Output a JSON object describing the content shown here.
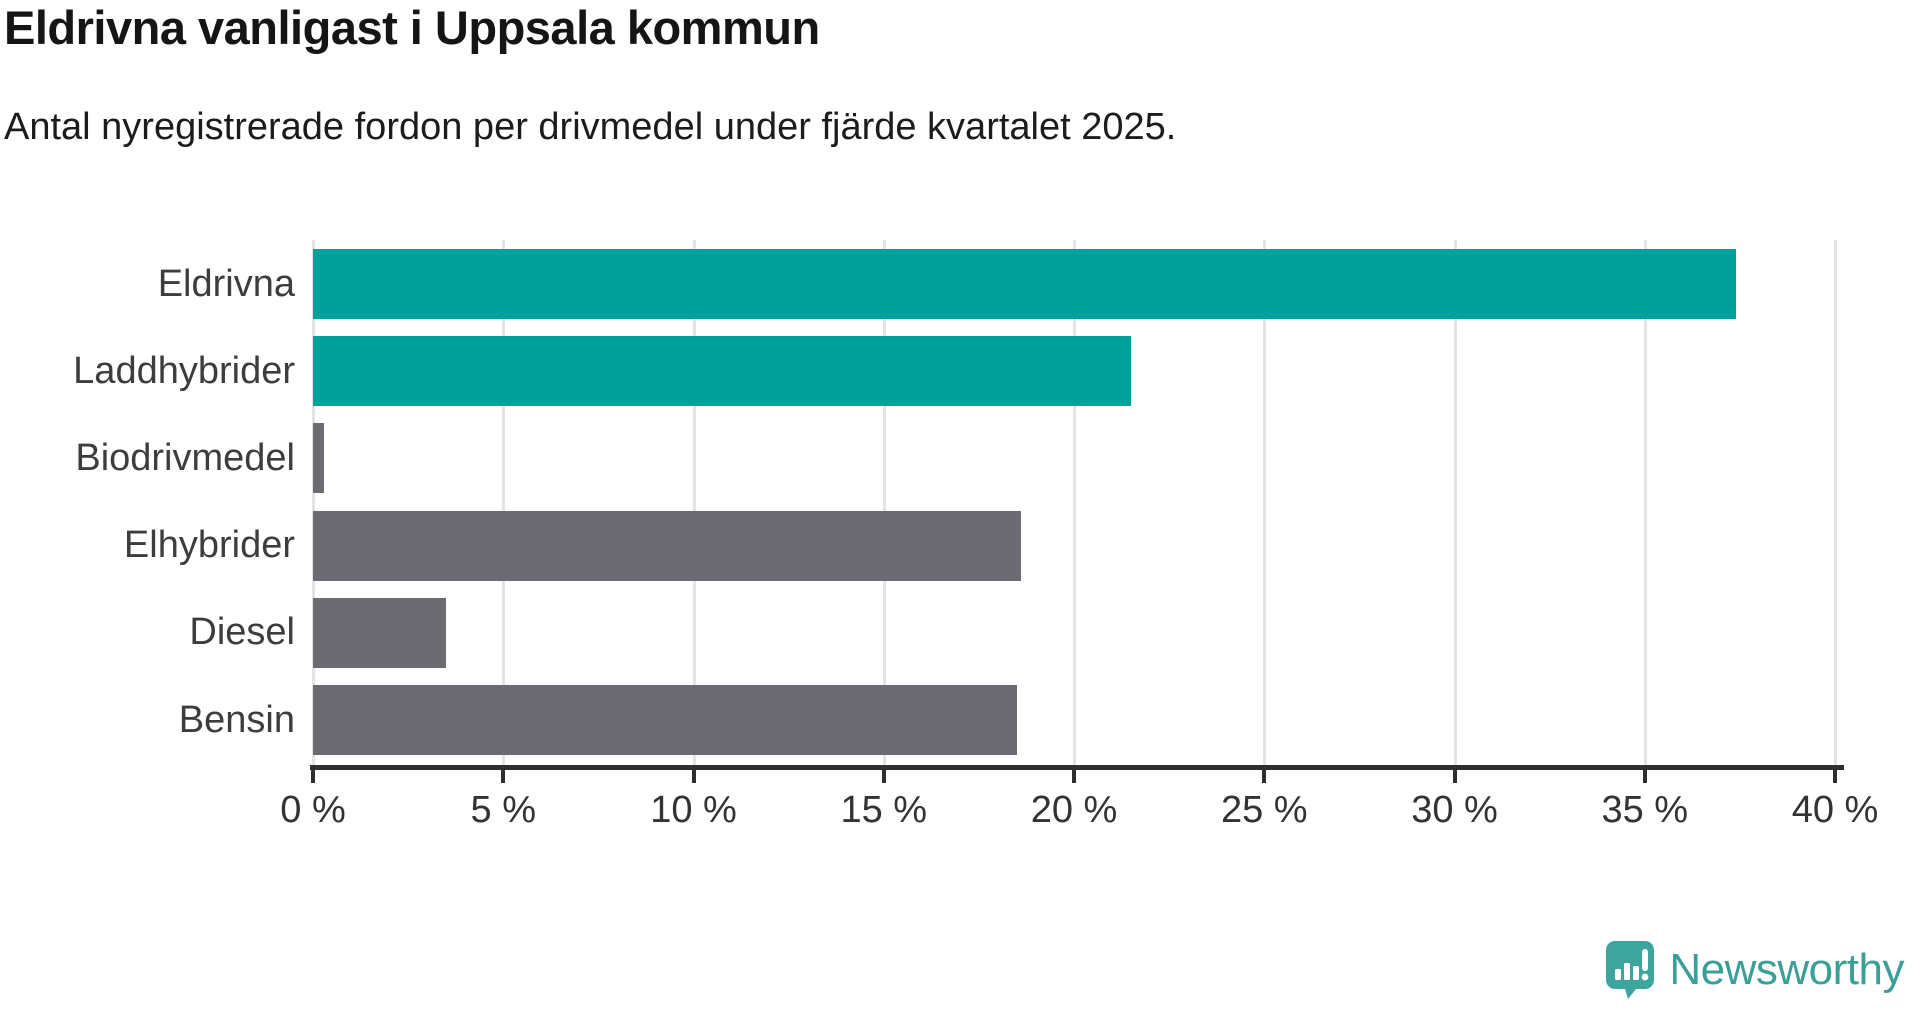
{
  "title": "Eldrivna vanligast i Uppsala kommun",
  "subtitle": "Antal nyregistrerade fordon per drivmedel under fjärde kvartalet 2025.",
  "colors": {
    "highlight_bar": "#00a19a",
    "default_bar": "#6c6b72",
    "axis": "#2e2e2e",
    "gridline": "#e4e4e4",
    "logo_teal": "#3b9f99"
  },
  "chart_data": {
    "type": "bar",
    "orientation": "horizontal",
    "title": "Eldrivna vanligast i Uppsala kommun",
    "subtitle": "Antal nyregistrerade fordon per drivmedel under fjärde kvartalet 2025.",
    "categories": [
      "Eldrivna",
      "Laddhybrider",
      "Biodrivmedel",
      "Elhybrider",
      "Diesel",
      "Bensin"
    ],
    "values": [
      37.4,
      21.5,
      0.3,
      18.6,
      3.5,
      18.5
    ],
    "unit": "%",
    "bar_colors": [
      "#00a19a",
      "#00a19a",
      "#6c6b72",
      "#6c6b72",
      "#6c6b72",
      "#6c6b72"
    ],
    "xlim": [
      0,
      40
    ],
    "x_ticks": [
      0,
      5,
      10,
      15,
      20,
      25,
      30,
      35,
      40
    ],
    "x_tick_labels": [
      "0 %",
      "5 %",
      "10 %",
      "15 %",
      "20 %",
      "25 %",
      "30 %",
      "35 %",
      "40 %"
    ],
    "grid": true,
    "legend": false,
    "xlabel": "",
    "ylabel": ""
  },
  "logo": {
    "text": "Newsworthy"
  }
}
